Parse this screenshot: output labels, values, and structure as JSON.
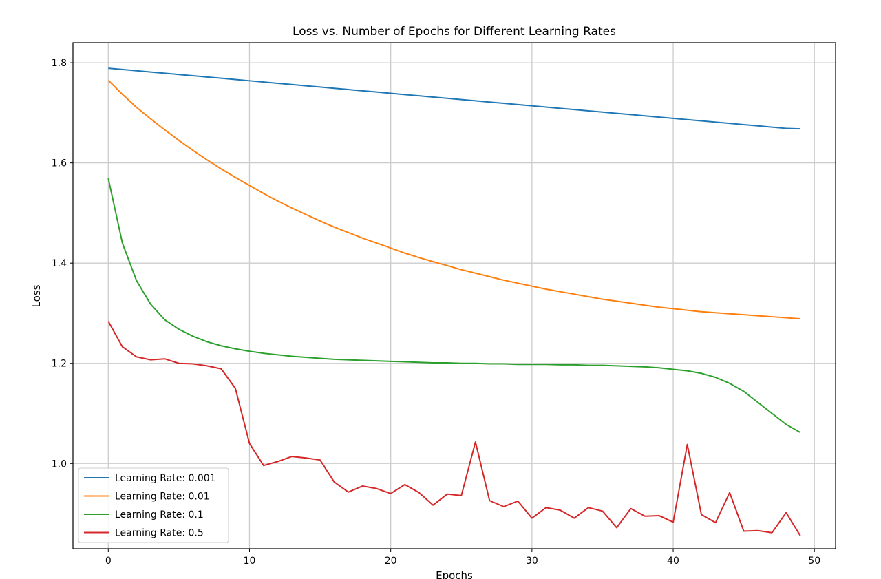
{
  "chart_data": {
    "type": "line",
    "title": "Loss vs. Number of Epochs for Different Learning Rates",
    "xlabel": "Epochs",
    "ylabel": "Loss",
    "xlim": [
      -2.5,
      51.5
    ],
    "ylim": [
      0.83,
      1.84
    ],
    "xticks": [
      0,
      10,
      20,
      30,
      40,
      50
    ],
    "yticks": [
      1.0,
      1.2,
      1.4,
      1.6,
      1.8
    ],
    "xtick_labels": [
      "0",
      "10",
      "20",
      "30",
      "40",
      "50"
    ],
    "ytick_labels": [
      "1.0",
      "1.2",
      "1.4",
      "1.6",
      "1.8"
    ],
    "grid": true,
    "legend_position": "lower-left",
    "x": [
      0,
      1,
      2,
      3,
      4,
      5,
      6,
      7,
      8,
      9,
      10,
      11,
      12,
      13,
      14,
      15,
      16,
      17,
      18,
      19,
      20,
      21,
      22,
      23,
      24,
      25,
      26,
      27,
      28,
      29,
      30,
      31,
      32,
      33,
      34,
      35,
      36,
      37,
      38,
      39,
      40,
      41,
      42,
      43,
      44,
      45,
      46,
      47,
      48,
      49
    ],
    "series": [
      {
        "name": "Learning Rate: 0.001",
        "color": "#1f77b4",
        "values": [
          1.789,
          1.7865,
          1.784,
          1.7815,
          1.779,
          1.7765,
          1.774,
          1.7715,
          1.769,
          1.7665,
          1.764,
          1.7615,
          1.759,
          1.7565,
          1.754,
          1.7515,
          1.749,
          1.7465,
          1.744,
          1.7415,
          1.739,
          1.7365,
          1.734,
          1.7315,
          1.729,
          1.7265,
          1.724,
          1.7215,
          1.719,
          1.7165,
          1.714,
          1.7115,
          1.709,
          1.7065,
          1.704,
          1.7015,
          1.699,
          1.6965,
          1.694,
          1.6915,
          1.689,
          1.6865,
          1.684,
          1.6815,
          1.679,
          1.6765,
          1.674,
          1.6715,
          1.669,
          1.668
        ]
      },
      {
        "name": "Learning Rate: 0.01",
        "color": "#ff7f0e",
        "values": [
          1.765,
          1.737,
          1.711,
          1.688,
          1.666,
          1.645,
          1.625,
          1.606,
          1.588,
          1.571,
          1.555,
          1.539,
          1.524,
          1.51,
          1.497,
          1.484,
          1.472,
          1.461,
          1.45,
          1.44,
          1.43,
          1.42,
          1.411,
          1.403,
          1.395,
          1.387,
          1.38,
          1.373,
          1.366,
          1.36,
          1.354,
          1.348,
          1.343,
          1.338,
          1.333,
          1.328,
          1.324,
          1.32,
          1.316,
          1.312,
          1.309,
          1.306,
          1.303,
          1.301,
          1.299,
          1.297,
          1.295,
          1.293,
          1.291,
          1.289
        ]
      },
      {
        "name": "Learning Rate: 0.1",
        "color": "#2ca02c",
        "values": [
          1.569,
          1.44,
          1.365,
          1.318,
          1.287,
          1.268,
          1.254,
          1.243,
          1.235,
          1.229,
          1.224,
          1.22,
          1.217,
          1.214,
          1.212,
          1.21,
          1.208,
          1.207,
          1.206,
          1.205,
          1.204,
          1.203,
          1.202,
          1.201,
          1.201,
          1.2,
          1.2,
          1.199,
          1.199,
          1.198,
          1.198,
          1.198,
          1.197,
          1.197,
          1.196,
          1.196,
          1.195,
          1.194,
          1.193,
          1.191,
          1.188,
          1.185,
          1.18,
          1.172,
          1.16,
          1.144,
          1.122,
          1.1,
          1.078,
          1.062
        ]
      },
      {
        "name": "Learning Rate: 0.5",
        "color": "#d62728",
        "values": [
          1.284,
          1.233,
          1.213,
          1.207,
          1.209,
          1.2,
          1.199,
          1.195,
          1.189,
          1.15,
          1.04,
          0.996,
          1.004,
          1.014,
          1.011,
          1.007,
          0.963,
          0.943,
          0.955,
          0.95,
          0.94,
          0.958,
          0.942,
          0.917,
          0.939,
          0.936,
          1.043,
          0.926,
          0.914,
          0.925,
          0.891,
          0.912,
          0.907,
          0.891,
          0.912,
          0.905,
          0.872,
          0.91,
          0.895,
          0.896,
          0.883,
          1.038,
          0.898,
          0.882,
          0.942,
          0.865,
          0.866,
          0.862,
          0.902,
          0.856
        ]
      }
    ]
  }
}
